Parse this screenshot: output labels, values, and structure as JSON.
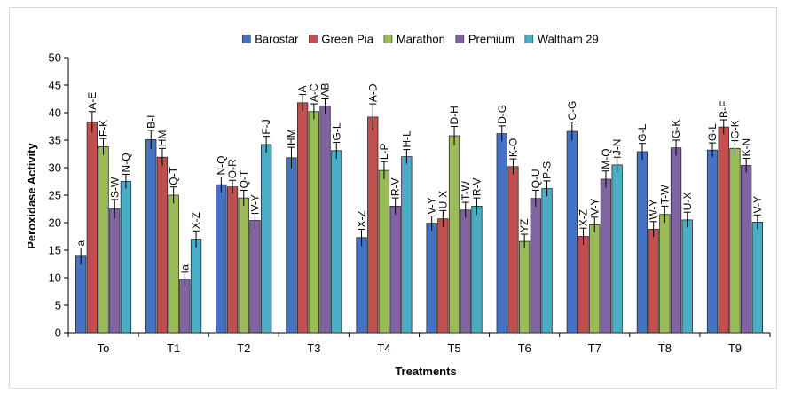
{
  "chart_data": {
    "type": "bar",
    "title": "",
    "xlabel": "Treatments",
    "ylabel": "Peroxidase Activity",
    "ylim": [
      0,
      50
    ],
    "yticks": [
      0,
      5,
      10,
      15,
      20,
      25,
      30,
      35,
      40,
      45,
      50
    ],
    "grid": false,
    "legend_position": "top",
    "categories": [
      "To",
      "T1",
      "T2",
      "T3",
      "T4",
      "T5",
      "T6",
      "T7",
      "T8",
      "T9"
    ],
    "series": [
      {
        "name": "Barostar",
        "color": "#4472c4",
        "values": [
          13.9,
          35.1,
          26.9,
          31.8,
          17.3,
          19.9,
          36.2,
          36.6,
          32.9,
          33.2
        ],
        "errors": [
          1.5,
          1.7,
          1.4,
          1.9,
          1.5,
          1.3,
          1.4,
          1.7,
          1.5,
          1.3
        ],
        "labels": [
          "a",
          "B-I",
          "N-Q",
          "HM",
          "X-Z",
          "V-Y",
          "D-G",
          "C-G",
          "G-L",
          "G-L"
        ]
      },
      {
        "name": "Green Pia",
        "color": "#c0504d",
        "values": [
          38.3,
          31.9,
          26.5,
          41.8,
          39.2,
          20.7,
          30.2,
          17.5,
          18.8,
          37.4
        ],
        "errors": [
          1.9,
          1.6,
          1.2,
          1.5,
          2.4,
          1.5,
          1.4,
          1.5,
          1.4,
          1.3
        ],
        "labels": [
          "A-E",
          "HM",
          "O-R",
          "A",
          "A-D",
          "U-X",
          "K-O",
          "X-Z",
          "W-Y",
          "B-F"
        ]
      },
      {
        "name": "Marathon",
        "color": "#9bbb59",
        "values": [
          33.8,
          25.0,
          24.5,
          40.2,
          29.5,
          35.8,
          16.6,
          19.6,
          21.5,
          33.5
        ],
        "errors": [
          1.5,
          1.5,
          1.4,
          1.4,
          1.6,
          1.7,
          1.3,
          1.4,
          1.5,
          1.4
        ],
        "labels": [
          "F-K",
          "Q-T",
          "Q-T",
          "A-C",
          "L-P",
          "D-H",
          "YZ",
          "V-Y",
          "T-W",
          "G-K"
        ]
      },
      {
        "name": "Premium",
        "color": "#8064a2",
        "values": [
          22.5,
          9.7,
          20.4,
          41.2,
          23.0,
          22.3,
          24.4,
          27.9,
          33.6,
          30.4
        ],
        "errors": [
          1.7,
          1.3,
          1.3,
          1.3,
          1.5,
          1.4,
          1.5,
          1.5,
          1.4,
          1.3
        ],
        "labels": [
          "S-W",
          "a",
          "V-Y",
          "AB",
          "R-V",
          "T-W",
          "Q-U",
          "M-Q",
          "G-K",
          "K-N"
        ]
      },
      {
        "name": "Waltham 29",
        "color": "#4bacc6",
        "values": [
          27.5,
          17.0,
          34.2,
          33.1,
          32.0,
          23.0,
          26.2,
          30.5,
          20.5,
          20.1
        ],
        "errors": [
          1.3,
          1.5,
          1.5,
          1.5,
          1.3,
          1.5,
          1.4,
          1.4,
          1.4,
          1.3
        ],
        "labels": [
          "N-Q",
          "X-Z",
          "F-J",
          "G-L",
          "H-L",
          "R-V",
          "P-S",
          "J-N",
          "U-X",
          "V-Y"
        ]
      }
    ]
  }
}
